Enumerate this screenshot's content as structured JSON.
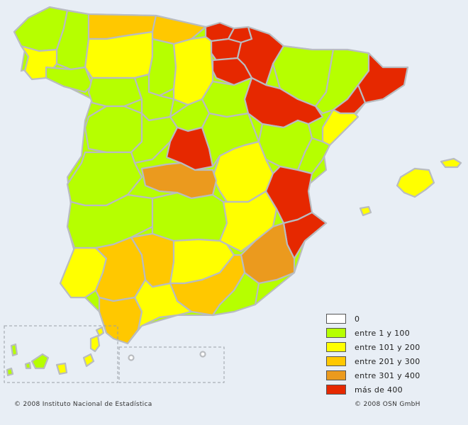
{
  "legend": {
    "colors": {
      "c0": "#ffffff",
      "c1": "#b6ff00",
      "c2": "#ffff00",
      "c3": "#ffc800",
      "c4": "#eb9a1e",
      "c5": "#e62800"
    },
    "items": [
      {
        "label": "0",
        "color": "#ffffff"
      },
      {
        "label": "entre 1 y 100",
        "color": "#b6ff00"
      },
      {
        "label": "entre 101 y 200",
        "color": "#ffff00"
      },
      {
        "label": "entre 201 y 300",
        "color": "#ffc800"
      },
      {
        "label": "entre 301 y 400",
        "color": "#eb9a1e"
      },
      {
        "label": "más de 400",
        "color": "#e62800"
      }
    ]
  },
  "footer": {
    "left": "© 2008 Instituto Nacional de Estadística",
    "right": "© 2008 OSN GmbH"
  }
}
